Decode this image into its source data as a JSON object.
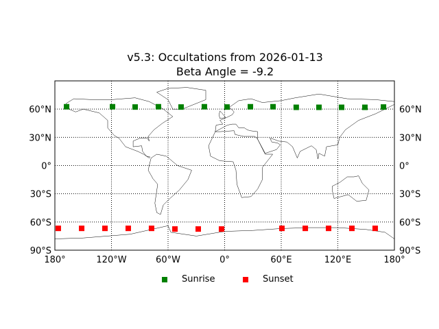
{
  "chart_data": {
    "type": "scatter",
    "title": "v5.3: Occultations from 2026-01-13",
    "subtitle": "Beta Angle = -9.2",
    "projection": "cylindrical world map with coastlines and country borders",
    "xlim": [
      -180,
      180
    ],
    "ylim": [
      -90,
      90
    ],
    "grid": true,
    "x_ticks": [
      -180,
      -120,
      -60,
      0,
      60,
      120,
      180
    ],
    "x_tick_labels": [
      "180°",
      "120°W",
      "60°W",
      "0°",
      "60°E",
      "120°E",
      "180°"
    ],
    "y_ticks": [
      -90,
      -60,
      -30,
      0,
      30,
      60
    ],
    "y_tick_labels": [
      "90°S",
      "60°S",
      "30°S",
      "0°",
      "30°N",
      "60°N"
    ],
    "legend_position": "bottom-center",
    "series": [
      {
        "name": "Sunrise",
        "color": "#008000",
        "marker": "square",
        "lon": [
          -167.6,
          -118.9,
          -94.9,
          -70.2,
          -46.2,
          -21.5,
          2.5,
          27.3,
          51.3,
          75.9,
          100.0,
          124.0,
          148.7,
          168.4
        ],
        "lat": [
          62.5,
          62.5,
          62.2,
          62.5,
          62.2,
          62.5,
          62.2,
          62.5,
          62.5,
          61.9,
          61.9,
          61.9,
          61.9,
          62.2
        ]
      },
      {
        "name": "Sunset",
        "color": "#ff0000",
        "marker": "square",
        "lon": [
          -176.4,
          -151.6,
          -126.9,
          -102.2,
          -77.5,
          -52.7,
          -28.0,
          -3.3,
          60.7,
          85.5,
          110.2,
          134.9,
          159.6
        ],
        "lat": [
          -66.8,
          -66.8,
          -66.8,
          -66.8,
          -66.8,
          -67.5,
          -67.5,
          -67.5,
          -66.8,
          -66.8,
          -66.8,
          -66.8,
          -66.8
        ]
      }
    ]
  }
}
